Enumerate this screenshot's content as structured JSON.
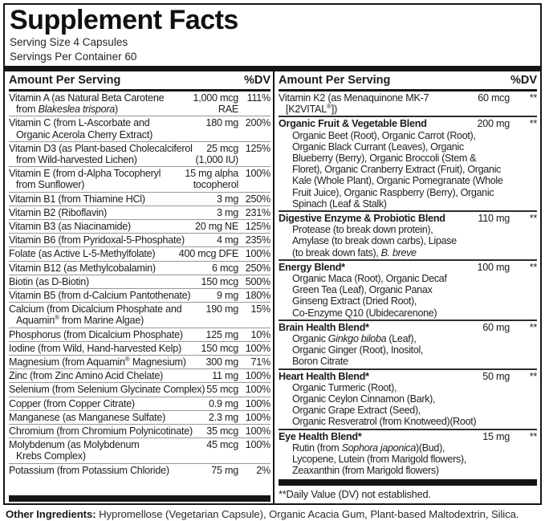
{
  "title": "Supplement Facts",
  "serving": {
    "size": "Serving Size 4 Capsules",
    "per_container": "Servings Per Container 60"
  },
  "columns": {
    "header_label": "Amount Per Serving",
    "dv_label": "%DV"
  },
  "left_rows": [
    {
      "name": [
        {
          "t": "Vitamin A (as Natural Beta Carotene\nfrom "
        },
        {
          "t": "Blakeslea trispora",
          "i": true
        },
        {
          "t": ")"
        }
      ],
      "amount": "1,000 mcg\nRAE",
      "dv": "111%"
    },
    {
      "name": [
        {
          "t": "Vitamin C (from L-Ascorbate and\nOrganic Acerola Cherry Extract)"
        }
      ],
      "amount": "180 mg",
      "dv": "200%"
    },
    {
      "name": [
        {
          "t": "Vitamin D3 (as Plant-based Cholecalciferol\nfrom Wild-harvested Lichen)"
        }
      ],
      "amount": "25 mcg\n(1,000 IU)",
      "dv": "125%"
    },
    {
      "name": [
        {
          "t": "Vitamin E (from d-Alpha Tocopheryl\nfrom Sunflower)"
        }
      ],
      "amount": "15 mg alpha\ntocopherol",
      "dv": "100%"
    },
    {
      "name": [
        {
          "t": "Vitamin B1 (from Thiamine HCl)"
        }
      ],
      "amount": "3 mg",
      "dv": "250%"
    },
    {
      "name": [
        {
          "t": "Vitamin B2 (Riboflavin)"
        }
      ],
      "amount": "3 mg",
      "dv": "231%"
    },
    {
      "name": [
        {
          "t": "Vitamin B3 (as Niacinamide)"
        }
      ],
      "amount": "20 mg NE",
      "dv": "125%"
    },
    {
      "name": [
        {
          "t": "Vitamin B6 (from Pyridoxal-5-Phosphate)"
        }
      ],
      "amount": "4 mg",
      "dv": "235%"
    },
    {
      "name": [
        {
          "t": "Folate (as Active L-5-Methylfolate)"
        }
      ],
      "amount": "400 mcg DFE",
      "dv": "100%"
    },
    {
      "name": [
        {
          "t": "Vitamin B12 (as Methylcobalamin)"
        }
      ],
      "amount": "6 mcg",
      "dv": "250%"
    },
    {
      "name": [
        {
          "t": "Biotin (as D-Biotin)"
        }
      ],
      "amount": "150 mcg",
      "dv": "500%"
    },
    {
      "name": [
        {
          "t": "Vitamin B5 (from d-Calcium Pantothenate)"
        }
      ],
      "amount": "9 mg",
      "dv": "180%"
    },
    {
      "name": [
        {
          "t": "Calcium (from Dicalcium Phosphate and\nAquamin"
        },
        {
          "t": "®",
          "sup": true
        },
        {
          "t": " from Marine Algae)"
        }
      ],
      "amount": "190 mg",
      "dv": "15%"
    },
    {
      "name": [
        {
          "t": "Phosphorus (from Dicalcium Phosphate)"
        }
      ],
      "amount": "125 mg",
      "dv": "10%"
    },
    {
      "name": [
        {
          "t": "Iodine (from Wild, Hand-harvested Kelp)"
        }
      ],
      "amount": "150 mcg",
      "dv": "100%"
    },
    {
      "name": [
        {
          "t": "Magnesium (from Aquamin"
        },
        {
          "t": "®",
          "sup": true
        },
        {
          "t": " Magnesium)"
        }
      ],
      "amount": "300 mg",
      "dv": "71%"
    },
    {
      "name": [
        {
          "t": "Zinc (from Zinc Amino Acid Chelate)"
        }
      ],
      "amount": "11 mg",
      "dv": "100%"
    },
    {
      "name": [
        {
          "t": "Selenium (from Selenium Glycinate Complex)"
        }
      ],
      "amount": "55 mcg",
      "dv": "100%"
    },
    {
      "name": [
        {
          "t": "Copper (from Copper Citrate)"
        }
      ],
      "amount": "0.9 mg",
      "dv": "100%"
    },
    {
      "name": [
        {
          "t": "Manganese (as Manganese Sulfate)"
        }
      ],
      "amount": "2.3 mg",
      "dv": "100%"
    },
    {
      "name": [
        {
          "t": "Chromium (from Chromium Polynicotinate)"
        }
      ],
      "amount": "35 mcg",
      "dv": "100%"
    },
    {
      "name": [
        {
          "t": "Molybdenum (as Molybdenum\nKrebs Complex)"
        }
      ],
      "amount": "45 mcg",
      "dv": "100%"
    },
    {
      "name": [
        {
          "t": "Potassium (from Potassium Chloride)"
        }
      ],
      "amount": "75 mg",
      "dv": "2%"
    }
  ],
  "right_rows": [
    {
      "bold": false,
      "name": [
        {
          "t": "Vitamin K2 (as Menaquinone MK-7\n[K2VITAL"
        },
        {
          "t": "®",
          "sup": true
        },
        {
          "t": "])"
        }
      ],
      "amount": "60 mcg",
      "dv": "**"
    },
    {
      "bold": true,
      "name": [
        {
          "t": "Organic Fruit & Vegetable Blend"
        }
      ],
      "amount": "200 mg",
      "dv": "**",
      "desc": [
        {
          "t": "Organic Beet (Root), Organic Carrot (Root),\nOrganic Black Currant (Leaves), Organic\nBlueberry (Berry), Organic Broccoli (Stem &\nFloret), Organic Cranberry Extract (Fruit), Organic\nKale (Whole Plant), Organic Pomegranate (Whole\nFruit Juice), Organic Raspberry (Berry), Organic\nSpinach (Leaf & Stalk)"
        }
      ]
    },
    {
      "bold": true,
      "name": [
        {
          "t": "Digestive Enzyme & Probiotic Blend"
        }
      ],
      "amount": "110 mg",
      "dv": "**",
      "desc": [
        {
          "t": "Protease (to break down protein),\nAmylase (to break down carbs), Lipase\n(to break down fats), "
        },
        {
          "t": "B. breve",
          "i": true
        }
      ]
    },
    {
      "bold": true,
      "name": [
        {
          "t": "Energy Blend*"
        }
      ],
      "amount": "100 mg",
      "dv": "**",
      "desc": [
        {
          "t": "Organic Maca (Root), Organic Decaf\nGreen Tea (Leaf), Organic Panax\nGinseng Extract (Dried Root),\nCo-Enzyme Q10 (Ubidecarenone)"
        }
      ]
    },
    {
      "bold": true,
      "name": [
        {
          "t": "Brain Health Blend*"
        }
      ],
      "amount": "60 mg",
      "dv": "**",
      "desc": [
        {
          "t": "Organic "
        },
        {
          "t": "Ginkgo biloba",
          "i": true
        },
        {
          "t": " (Leaf),\nOrganic Ginger (Root), Inositol,\nBoron Citrate"
        }
      ]
    },
    {
      "bold": true,
      "name": [
        {
          "t": "Heart Health Blend*"
        }
      ],
      "amount": "50 mg",
      "dv": "**",
      "desc": [
        {
          "t": "Organic Turmeric (Root),\nOrganic Ceylon Cinnamon (Bark),\nOrganic Grape Extract (Seed),\nOrganic Resveratrol (from Knotweed)(Root)"
        }
      ]
    },
    {
      "bold": true,
      "name": [
        {
          "t": "Eye Health Blend*"
        }
      ],
      "amount": "15 mg",
      "dv": "**",
      "desc": [
        {
          "t": "Rutin (from "
        },
        {
          "t": "Sophora japonica",
          "i": true
        },
        {
          "t": ")(Bud),\nLycopene, Lutein (from Marigold flowers),\nZeaxanthin (from Marigold flowers)"
        }
      ]
    }
  ],
  "footnote": "**Daily Value (DV) not established.",
  "other_ingredients": {
    "label": "Other Ingredients:",
    "text": " Hypromellose (Vegetarian Capsule), Organic Acacia Gum, Plant-based Maltodextrin, Silica."
  },
  "colors": {
    "text": "#1c1c1c",
    "bar": "#151515",
    "row_separator": "#979797",
    "background": "#ffffff"
  }
}
